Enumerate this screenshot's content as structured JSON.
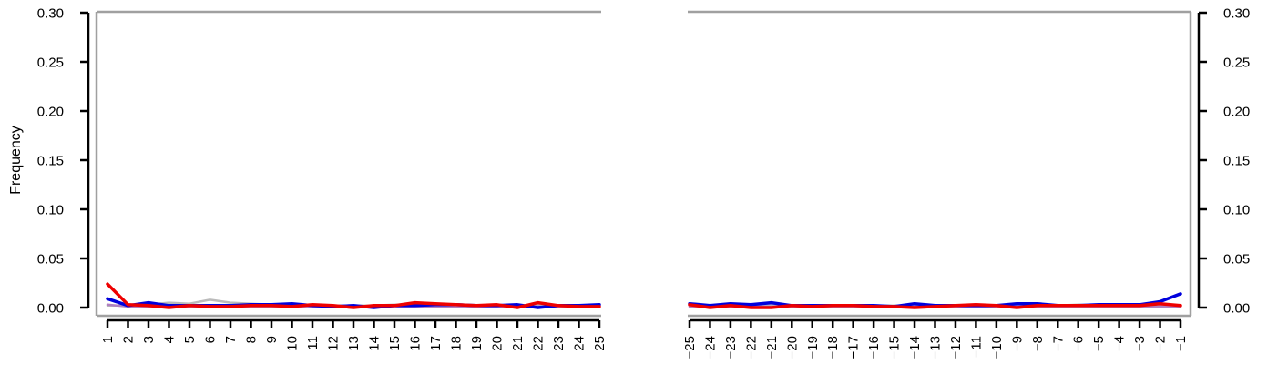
{
  "chart_data": [
    {
      "type": "line",
      "panel": "left",
      "ylabel": "Frequency",
      "ylim": [
        0,
        0.3
      ],
      "yticks": [
        "0.00",
        "0.05",
        "0.10",
        "0.15",
        "0.20",
        "0.25",
        "0.30"
      ],
      "ytick_values": [
        0,
        0.05,
        0.1,
        0.15,
        0.2,
        0.25,
        0.3
      ],
      "y_axis_side": "left",
      "categories": [
        "1",
        "2",
        "3",
        "4",
        "5",
        "6",
        "7",
        "8",
        "9",
        "10",
        "11",
        "12",
        "13",
        "14",
        "15",
        "16",
        "17",
        "18",
        "19",
        "20",
        "21",
        "22",
        "23",
        "24",
        "25"
      ],
      "series": [
        {
          "name": "grey",
          "color": "#bbbbbb",
          "values": [
            0.002,
            0.002,
            0.003,
            0.005,
            0.004,
            0.008,
            0.005,
            0.004,
            0.003,
            0.003,
            0.002,
            0.002,
            0.002,
            0.002,
            0.003,
            0.003,
            0.003,
            0.002,
            0.002,
            0.002,
            0.002,
            0.002,
            0.002,
            0.002,
            0.002
          ]
        },
        {
          "name": "purple",
          "color": "#b080c0",
          "values": [
            0.003,
            0.001,
            0.001,
            0.001,
            0.001,
            0.001,
            0.001,
            0.001,
            0.001,
            0.001,
            0.001,
            0.001,
            0.001,
            0.001,
            0.001,
            0.001,
            0.001,
            0.001,
            0.001,
            0.001,
            0.001,
            0.001,
            0.001,
            0.001,
            0.001
          ]
        },
        {
          "name": "blue",
          "color": "#0000dd",
          "values": [
            0.009,
            0.002,
            0.005,
            0.002,
            0.002,
            0.002,
            0.002,
            0.003,
            0.003,
            0.004,
            0.002,
            0.001,
            0.002,
            0.0,
            0.002,
            0.002,
            0.003,
            0.003,
            0.002,
            0.002,
            0.003,
            0.0,
            0.002,
            0.002,
            0.003
          ]
        },
        {
          "name": "red",
          "color": "#ee0000",
          "values": [
            0.024,
            0.003,
            0.002,
            0.0,
            0.002,
            0.001,
            0.001,
            0.002,
            0.002,
            0.001,
            0.003,
            0.002,
            0.0,
            0.002,
            0.002,
            0.005,
            0.004,
            0.003,
            0.002,
            0.003,
            0.0,
            0.005,
            0.002,
            0.001,
            0.001
          ]
        }
      ]
    },
    {
      "type": "line",
      "panel": "right",
      "ylabel": "",
      "ylim": [
        0,
        0.3
      ],
      "yticks": [
        "0.00",
        "0.05",
        "0.10",
        "0.15",
        "0.20",
        "0.25",
        "0.30"
      ],
      "ytick_values": [
        0,
        0.05,
        0.1,
        0.15,
        0.2,
        0.25,
        0.3
      ],
      "y_axis_side": "right",
      "categories": [
        "−25",
        "−24",
        "−23",
        "−22",
        "−21",
        "−20",
        "−19",
        "−18",
        "−17",
        "−16",
        "−15",
        "−14",
        "−13",
        "−12",
        "−11",
        "−10",
        "−9",
        "−8",
        "−7",
        "−6",
        "−5",
        "−4",
        "−3",
        "−2",
        "−1"
      ],
      "series": [
        {
          "name": "grey",
          "color": "#bbbbbb",
          "values": [
            0.002,
            0.002,
            0.002,
            0.002,
            0.002,
            0.002,
            0.002,
            0.002,
            0.002,
            0.002,
            0.002,
            0.002,
            0.002,
            0.002,
            0.002,
            0.002,
            0.002,
            0.002,
            0.002,
            0.003,
            0.002,
            0.002,
            0.002,
            0.002,
            0.002
          ]
        },
        {
          "name": "purple",
          "color": "#b080c0",
          "values": [
            0.001,
            0.001,
            0.001,
            0.001,
            0.001,
            0.001,
            0.001,
            0.001,
            0.001,
            0.001,
            0.001,
            0.001,
            0.001,
            0.001,
            0.001,
            0.001,
            0.001,
            0.001,
            0.001,
            0.001,
            0.001,
            0.001,
            0.001,
            0.001,
            0.001
          ]
        },
        {
          "name": "blue",
          "color": "#0000dd",
          "values": [
            0.004,
            0.002,
            0.004,
            0.003,
            0.005,
            0.002,
            0.002,
            0.002,
            0.002,
            0.002,
            0.001,
            0.004,
            0.002,
            0.002,
            0.002,
            0.002,
            0.004,
            0.004,
            0.002,
            0.002,
            0.003,
            0.003,
            0.003,
            0.006,
            0.014
          ]
        },
        {
          "name": "red",
          "color": "#ee0000",
          "values": [
            0.003,
            0.0,
            0.002,
            0.0,
            0.0,
            0.002,
            0.001,
            0.002,
            0.002,
            0.001,
            0.001,
            0.0,
            0.001,
            0.002,
            0.003,
            0.002,
            0.0,
            0.002,
            0.002,
            0.002,
            0.002,
            0.002,
            0.002,
            0.004,
            0.002
          ]
        }
      ]
    }
  ]
}
